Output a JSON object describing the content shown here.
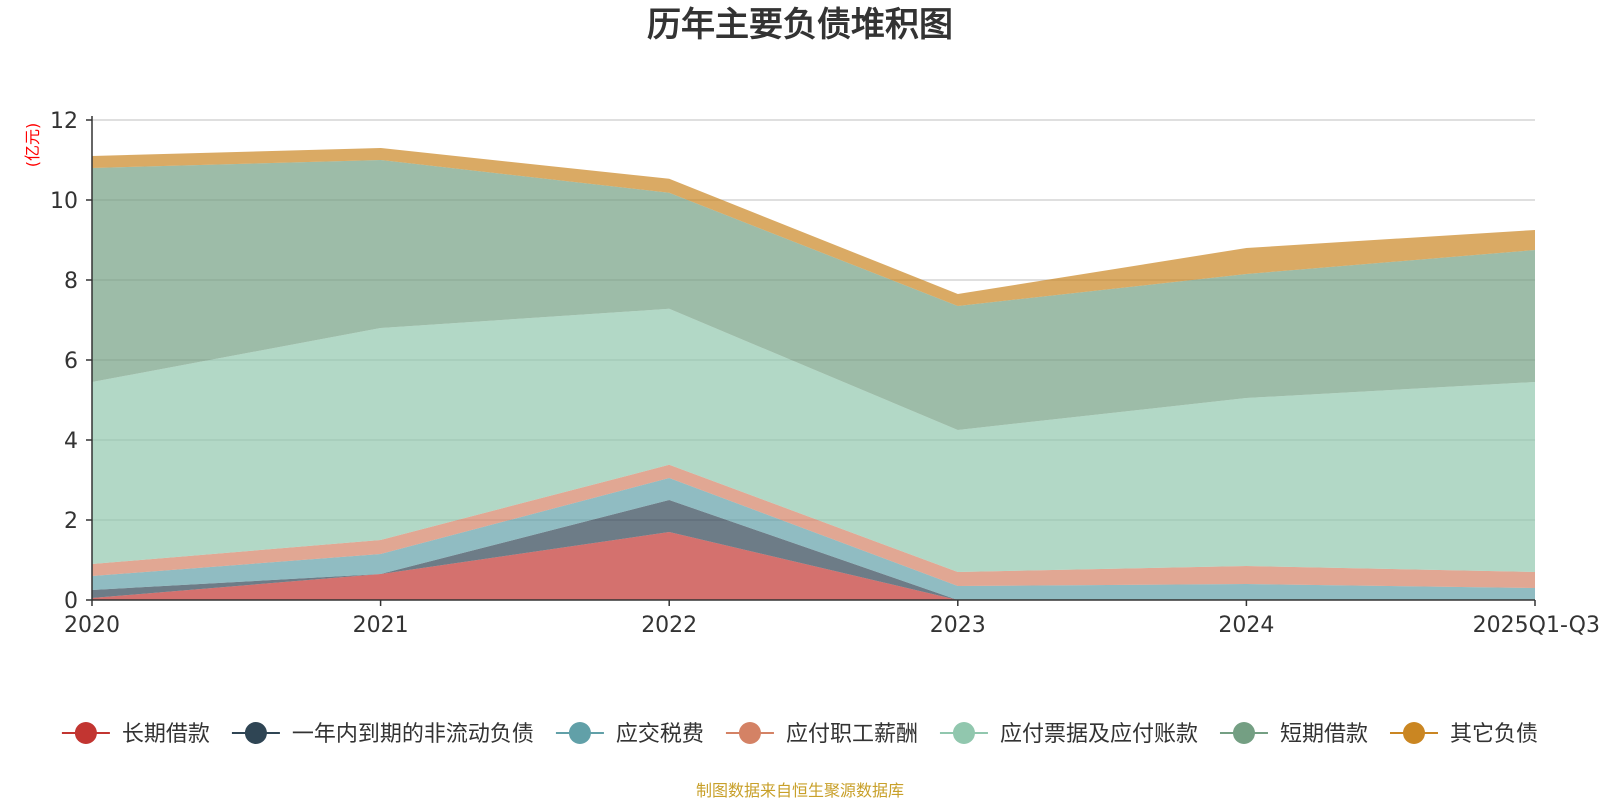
{
  "colors": {
    "series": [
      "#c23531",
      "#2f4554",
      "#61a0a8",
      "#d48265",
      "#91c7ae",
      "#749f83",
      "#ca8622"
    ],
    "unit": "#ff0000",
    "source": "#c8a02a",
    "grid": "#cccccc",
    "axis": "#333333"
  },
  "chart_data": {
    "type": "area",
    "stacked": true,
    "title": "历年主要负债堆积图",
    "ylabel": "(亿元)",
    "xlabel": "",
    "ylim": [
      0,
      12
    ],
    "yticks": [
      0,
      2,
      4,
      6,
      8,
      10,
      12
    ],
    "categories": [
      "2020",
      "2021",
      "2022",
      "2023",
      "2024",
      "2025Q1-Q3"
    ],
    "series": [
      {
        "name": "长期借款",
        "values": [
          0.05,
          0.65,
          1.7,
          0.0,
          0.0,
          0.0
        ]
      },
      {
        "name": "一年内到期的非流动负债",
        "values": [
          0.2,
          0.0,
          0.8,
          0.0,
          0.0,
          0.0
        ]
      },
      {
        "name": "应交税费",
        "values": [
          0.35,
          0.5,
          0.55,
          0.35,
          0.4,
          0.3
        ]
      },
      {
        "name": "应付职工薪酬",
        "values": [
          0.3,
          0.35,
          0.33,
          0.35,
          0.45,
          0.4
        ]
      },
      {
        "name": "应付票据及应付账款",
        "values": [
          4.55,
          5.3,
          3.9,
          3.55,
          4.2,
          4.75
        ]
      },
      {
        "name": "短期借款",
        "values": [
          5.35,
          4.2,
          2.9,
          3.1,
          3.1,
          3.3
        ]
      },
      {
        "name": "其它负债",
        "values": [
          0.3,
          0.3,
          0.35,
          0.3,
          0.65,
          0.5
        ]
      }
    ],
    "legend_position": "bottom",
    "source": "制图数据来自恒生聚源数据库"
  }
}
